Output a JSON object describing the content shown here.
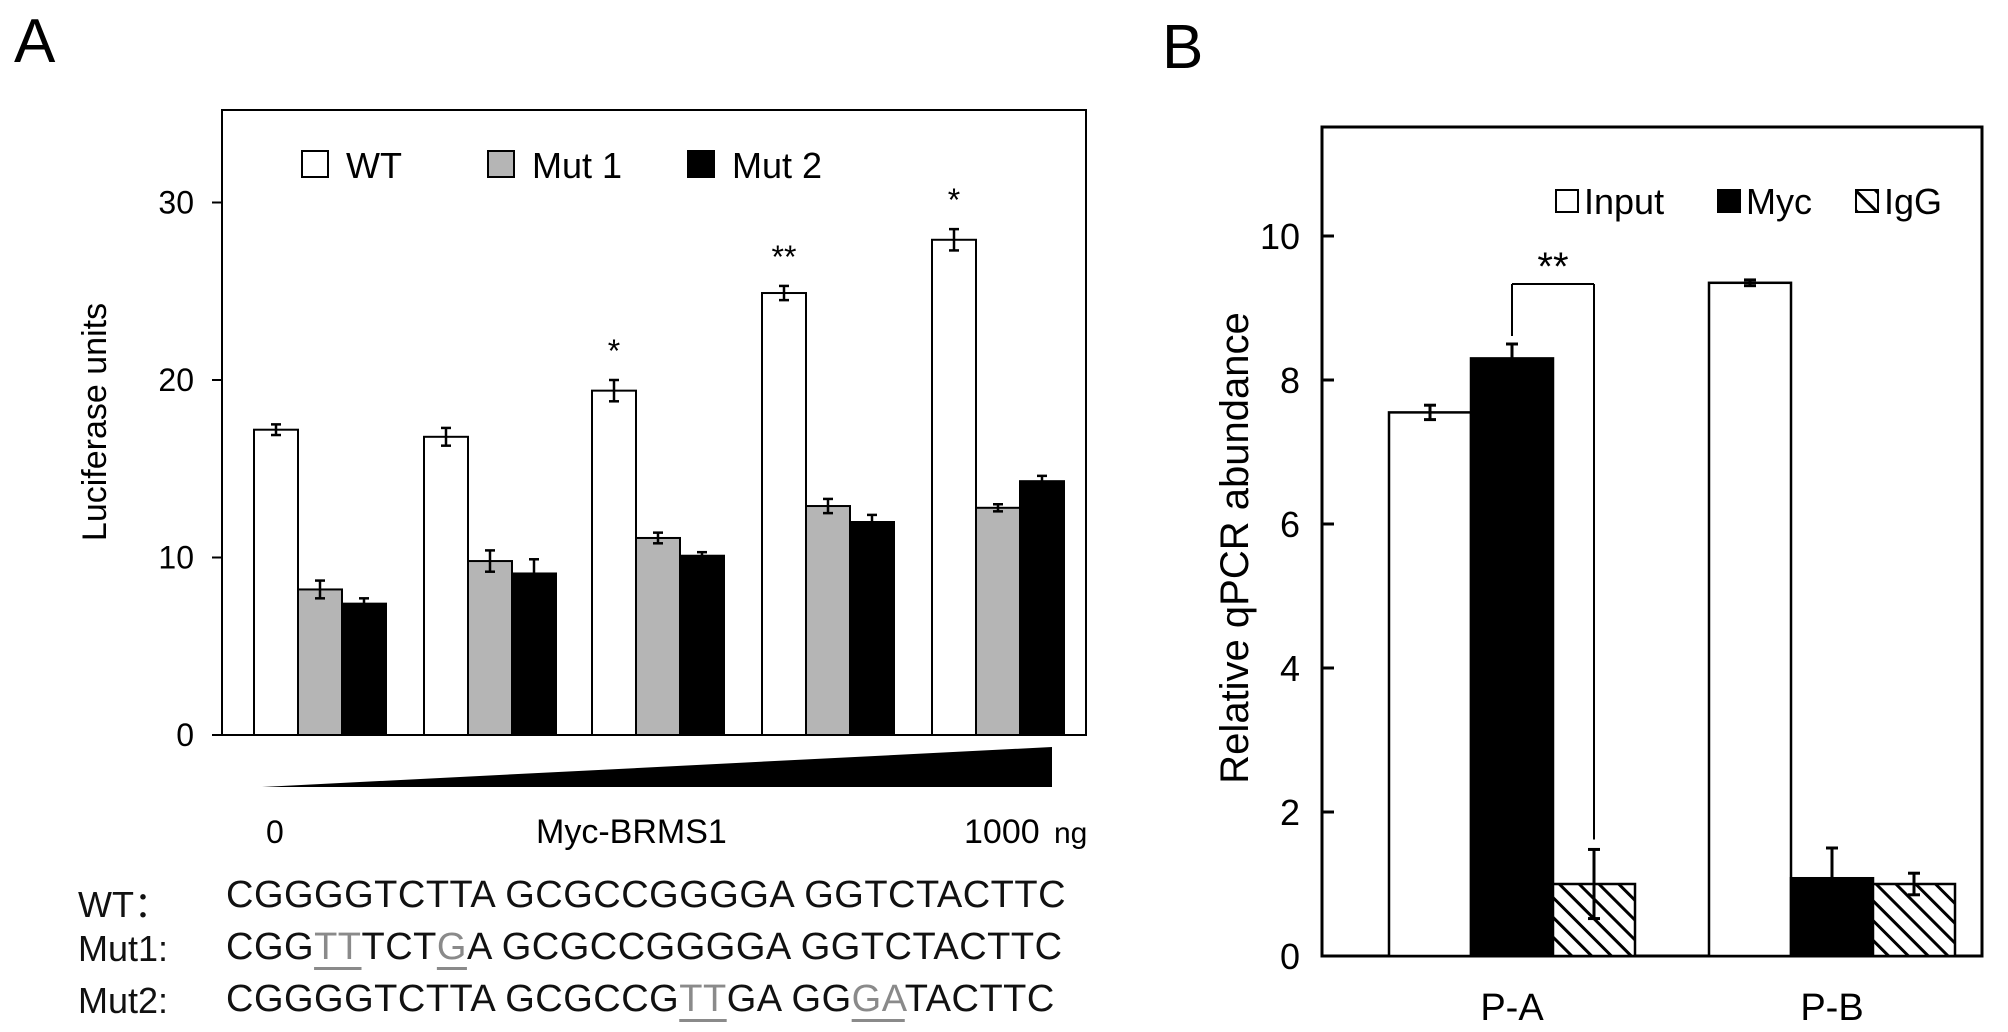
{
  "panel_a_label": "A",
  "panel_b_label": "B",
  "chart_data": [
    {
      "type": "bar",
      "panel": "A",
      "ylabel": "Luciferase units",
      "ylim": [
        0,
        35
      ],
      "yticks": [
        "0",
        "10",
        "20",
        "30"
      ],
      "grid": false,
      "legend": [
        "WT",
        "Mut 1",
        "Mut 2"
      ],
      "legend_placement": "top",
      "xlabel": "Myc-BRMS1",
      "x_start_label": "0",
      "x_end_label": "1000",
      "x_unit": "ng",
      "series": [
        {
          "name": "WT",
          "color": "#ffffff",
          "values": [
            17.2,
            16.8,
            19.4,
            24.9,
            27.9
          ],
          "errors": [
            0.3,
            0.5,
            0.6,
            0.4,
            0.6
          ]
        },
        {
          "name": "Mut 1",
          "color": "#b5b5b5",
          "values": [
            8.2,
            9.8,
            11.1,
            12.9,
            12.8
          ],
          "errors": [
            0.5,
            0.6,
            0.3,
            0.4,
            0.2
          ]
        },
        {
          "name": "Mut 2",
          "color": "#000000",
          "values": [
            7.4,
            9.1,
            10.1,
            12.0,
            14.3
          ],
          "errors": [
            0.3,
            0.8,
            0.2,
            0.4,
            0.3
          ]
        }
      ],
      "significance": [
        "",
        "",
        "*",
        "**",
        "*"
      ]
    },
    {
      "type": "bar",
      "panel": "B",
      "ylabel": "Relative qPCR abundance",
      "ylim": [
        0,
        11.5
      ],
      "yticks": [
        "0",
        "2",
        "4",
        "6",
        "8",
        "10"
      ],
      "grid": false,
      "categories": [
        "P-A",
        "P-B"
      ],
      "legend": [
        "Input",
        "Myc",
        "IgG"
      ],
      "legend_placement": "top-right",
      "series": [
        {
          "name": "Input",
          "fill": "white",
          "values": [
            7.55,
            9.35
          ],
          "errors": [
            0.1,
            0.04
          ]
        },
        {
          "name": "Myc",
          "fill": "black",
          "values": [
            8.3,
            1.08
          ],
          "errors": [
            0.2,
            0.42
          ]
        },
        {
          "name": "IgG",
          "fill": "hatched",
          "values": [
            1.0,
            1.0
          ],
          "errors": [
            0.48,
            0.15
          ]
        }
      ],
      "significance": {
        "label": "**",
        "between": [
          "Myc",
          "IgG"
        ],
        "category": "P-A"
      }
    }
  ],
  "sequences": [
    {
      "label": "WT：",
      "segments": [
        {
          "t": "CGGGGTCTTA GCGCCGGGGA GGTCTACTTC",
          "m": false
        }
      ]
    },
    {
      "label": "Mut1:",
      "segments": [
        {
          "t": "CGG",
          "m": false
        },
        {
          "t": "TT",
          "m": true
        },
        {
          "t": "TCT",
          "m": false
        },
        {
          "t": "G",
          "m": true
        },
        {
          "t": "A GCGCCGGGGA GGTCTACTTC",
          "m": false
        }
      ]
    },
    {
      "label": "Mut2:",
      "segments": [
        {
          "t": "CGGGGTCTTA GCGCCG",
          "m": false
        },
        {
          "t": "TT",
          "m": true
        },
        {
          "t": "GA GG",
          "m": false
        },
        {
          "t": "GA",
          "m": true
        },
        {
          "t": "TACTTC",
          "m": false
        }
      ]
    }
  ]
}
